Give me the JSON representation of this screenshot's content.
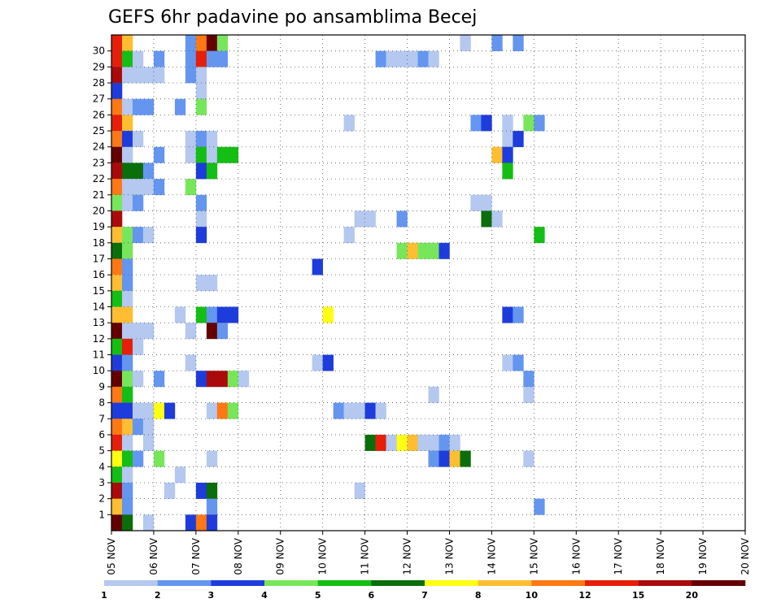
{
  "chart_data": {
    "type": "heatmap",
    "title": "GEFS 6hr padavine po ansamblima Becej",
    "xlabel": "",
    "ylabel": "",
    "x_tick_labels": [
      "05 NOV",
      "06 NOV",
      "07 NOV",
      "08 NOV",
      "09 NOV",
      "10 NOV",
      "11 NOV",
      "12 NOV",
      "13 NOV",
      "14 NOV",
      "15 NOV",
      "16 NOV",
      "17 NOV",
      "18 NOV",
      "19 NOV",
      "20 NOV"
    ],
    "y_tick_labels": [
      "1",
      "2",
      "3",
      "4",
      "5",
      "6",
      "7",
      "8",
      "9",
      "10",
      "11",
      "12",
      "13",
      "14",
      "15",
      "16",
      "17",
      "18",
      "19",
      "20",
      "21",
      "22",
      "23",
      "24",
      "25",
      "26",
      "27",
      "28",
      "29",
      "30"
    ],
    "x_range_days": [
      5,
      20
    ],
    "y_range_members": [
      0,
      30
    ],
    "time_step_hours": 6,
    "grid": true,
    "legend_position": "bottom",
    "legend_labels": [
      "1",
      "2",
      "3",
      "4",
      "5",
      "6",
      "7",
      "8",
      "10",
      "12",
      "15",
      "20"
    ],
    "color_bins": [
      "#b4c8f0",
      "#6496f0",
      "#1e3cdc",
      "#78e65a",
      "#14be14",
      "#0a6e0a",
      "#ffff14",
      "#ffbe32",
      "#ff7814",
      "#e61e0a",
      "#aa0a0a",
      "#640000"
    ],
    "cells_note": "each cell = [member, 6h-step index from 05 NOV 00z, color bin index 0-11]",
    "cells": [
      [
        30,
        0,
        9
      ],
      [
        30,
        1,
        7
      ],
      [
        30,
        7,
        1
      ],
      [
        30,
        8,
        8
      ],
      [
        30,
        9,
        11
      ],
      [
        30,
        10,
        3
      ],
      [
        30,
        33,
        0
      ],
      [
        30,
        36,
        1
      ],
      [
        30,
        38,
        1
      ],
      [
        29,
        0,
        9
      ],
      [
        29,
        1,
        4
      ],
      [
        29,
        2,
        0
      ],
      [
        29,
        4,
        1
      ],
      [
        29,
        7,
        1
      ],
      [
        29,
        8,
        9
      ],
      [
        29,
        9,
        1
      ],
      [
        29,
        10,
        1
      ],
      [
        29,
        25,
        1
      ],
      [
        29,
        26,
        0
      ],
      [
        29,
        27,
        0
      ],
      [
        29,
        28,
        0
      ],
      [
        29,
        29,
        1
      ],
      [
        29,
        30,
        0
      ],
      [
        28,
        0,
        10
      ],
      [
        28,
        1,
        0
      ],
      [
        28,
        2,
        0
      ],
      [
        28,
        3,
        0
      ],
      [
        28,
        4,
        0
      ],
      [
        28,
        7,
        1
      ],
      [
        28,
        8,
        0
      ],
      [
        27,
        0,
        2
      ],
      [
        27,
        8,
        0
      ],
      [
        26,
        0,
        8
      ],
      [
        26,
        1,
        0
      ],
      [
        26,
        2,
        1
      ],
      [
        26,
        3,
        1
      ],
      [
        26,
        6,
        1
      ],
      [
        26,
        8,
        3
      ],
      [
        25,
        0,
        9
      ],
      [
        25,
        1,
        7
      ],
      [
        25,
        22,
        0
      ],
      [
        25,
        34,
        1
      ],
      [
        25,
        35,
        2
      ],
      [
        25,
        37,
        0
      ],
      [
        25,
        39,
        3
      ],
      [
        25,
        40,
        1
      ],
      [
        24,
        0,
        8
      ],
      [
        24,
        1,
        2
      ],
      [
        24,
        2,
        0
      ],
      [
        24,
        7,
        0
      ],
      [
        24,
        8,
        1
      ],
      [
        24,
        9,
        0
      ],
      [
        24,
        37,
        0
      ],
      [
        24,
        38,
        2
      ],
      [
        23,
        0,
        11
      ],
      [
        23,
        1,
        0
      ],
      [
        23,
        4,
        1
      ],
      [
        23,
        7,
        0
      ],
      [
        23,
        8,
        4
      ],
      [
        23,
        9,
        0
      ],
      [
        23,
        10,
        4
      ],
      [
        23,
        11,
        4
      ],
      [
        23,
        36,
        7
      ],
      [
        23,
        37,
        2
      ],
      [
        22,
        0,
        10
      ],
      [
        22,
        1,
        5
      ],
      [
        22,
        2,
        5
      ],
      [
        22,
        3,
        1
      ],
      [
        22,
        8,
        2
      ],
      [
        22,
        9,
        4
      ],
      [
        22,
        37,
        4
      ],
      [
        21,
        0,
        8
      ],
      [
        21,
        1,
        0
      ],
      [
        21,
        2,
        0
      ],
      [
        21,
        3,
        0
      ],
      [
        21,
        4,
        1
      ],
      [
        21,
        7,
        3
      ],
      [
        20,
        0,
        3
      ],
      [
        20,
        1,
        0
      ],
      [
        20,
        2,
        1
      ],
      [
        20,
        8,
        1
      ],
      [
        20,
        34,
        0
      ],
      [
        20,
        35,
        0
      ],
      [
        19,
        0,
        10
      ],
      [
        19,
        8,
        0
      ],
      [
        19,
        23,
        0
      ],
      [
        19,
        24,
        0
      ],
      [
        19,
        27,
        1
      ],
      [
        19,
        35,
        5
      ],
      [
        19,
        36,
        0
      ],
      [
        18,
        0,
        7
      ],
      [
        18,
        1,
        3
      ],
      [
        18,
        2,
        1
      ],
      [
        18,
        3,
        0
      ],
      [
        18,
        8,
        2
      ],
      [
        18,
        22,
        0
      ],
      [
        18,
        40,
        4
      ],
      [
        17,
        0,
        5
      ],
      [
        17,
        1,
        3
      ],
      [
        17,
        27,
        3
      ],
      [
        17,
        28,
        7
      ],
      [
        17,
        29,
        3
      ],
      [
        17,
        30,
        3
      ],
      [
        17,
        31,
        2
      ],
      [
        16,
        0,
        8
      ],
      [
        16,
        1,
        1
      ],
      [
        16,
        19,
        2
      ],
      [
        15,
        0,
        7
      ],
      [
        15,
        1,
        1
      ],
      [
        15,
        8,
        0
      ],
      [
        15,
        9,
        0
      ],
      [
        14,
        0,
        4
      ],
      [
        14,
        1,
        0
      ],
      [
        13,
        0,
        7
      ],
      [
        13,
        1,
        7
      ],
      [
        13,
        6,
        0
      ],
      [
        13,
        8,
        4
      ],
      [
        13,
        9,
        1
      ],
      [
        13,
        10,
        2
      ],
      [
        13,
        11,
        2
      ],
      [
        13,
        20,
        6
      ],
      [
        13,
        37,
        2
      ],
      [
        13,
        38,
        1
      ],
      [
        12,
        0,
        11
      ],
      [
        12,
        1,
        0
      ],
      [
        12,
        2,
        0
      ],
      [
        12,
        3,
        0
      ],
      [
        12,
        7,
        0
      ],
      [
        12,
        9,
        11
      ],
      [
        12,
        10,
        1
      ],
      [
        11,
        0,
        4
      ],
      [
        11,
        1,
        9
      ],
      [
        11,
        2,
        0
      ],
      [
        10,
        0,
        2
      ],
      [
        10,
        1,
        1
      ],
      [
        10,
        7,
        0
      ],
      [
        10,
        19,
        0
      ],
      [
        10,
        20,
        2
      ],
      [
        10,
        37,
        0
      ],
      [
        10,
        38,
        1
      ],
      [
        9,
        0,
        11
      ],
      [
        9,
        1,
        3
      ],
      [
        9,
        2,
        0
      ],
      [
        9,
        4,
        1
      ],
      [
        9,
        8,
        2
      ],
      [
        9,
        9,
        10
      ],
      [
        9,
        10,
        10
      ],
      [
        9,
        11,
        3
      ],
      [
        9,
        12,
        0
      ],
      [
        9,
        39,
        1
      ],
      [
        8,
        0,
        8
      ],
      [
        8,
        1,
        4
      ],
      [
        8,
        30,
        0
      ],
      [
        8,
        39,
        0
      ],
      [
        7,
        0,
        2
      ],
      [
        7,
        1,
        2
      ],
      [
        7,
        2,
        0
      ],
      [
        7,
        3,
        0
      ],
      [
        7,
        4,
        6
      ],
      [
        7,
        5,
        2
      ],
      [
        7,
        9,
        0
      ],
      [
        7,
        10,
        8
      ],
      [
        7,
        11,
        3
      ],
      [
        7,
        21,
        1
      ],
      [
        7,
        22,
        0
      ],
      [
        7,
        23,
        0
      ],
      [
        7,
        24,
        2
      ],
      [
        7,
        25,
        0
      ],
      [
        6,
        0,
        8
      ],
      [
        6,
        1,
        7
      ],
      [
        6,
        2,
        1
      ],
      [
        6,
        3,
        0
      ],
      [
        5,
        0,
        9
      ],
      [
        5,
        1,
        0
      ],
      [
        5,
        3,
        0
      ],
      [
        5,
        24,
        5
      ],
      [
        5,
        25,
        9
      ],
      [
        5,
        26,
        0
      ],
      [
        5,
        27,
        6
      ],
      [
        5,
        28,
        7
      ],
      [
        5,
        29,
        0
      ],
      [
        5,
        30,
        0
      ],
      [
        5,
        31,
        1
      ],
      [
        5,
        32,
        0
      ],
      [
        4,
        0,
        6
      ],
      [
        4,
        1,
        4
      ],
      [
        4,
        2,
        1
      ],
      [
        4,
        4,
        3
      ],
      [
        4,
        9,
        0
      ],
      [
        4,
        30,
        1
      ],
      [
        4,
        31,
        2
      ],
      [
        4,
        32,
        7
      ],
      [
        4,
        33,
        5
      ],
      [
        4,
        39,
        0
      ],
      [
        3,
        0,
        4
      ],
      [
        3,
        1,
        0
      ],
      [
        3,
        6,
        0
      ],
      [
        2,
        0,
        10
      ],
      [
        2,
        1,
        1
      ],
      [
        2,
        5,
        0
      ],
      [
        2,
        8,
        2
      ],
      [
        2,
        9,
        5
      ],
      [
        2,
        23,
        0
      ],
      [
        1,
        0,
        7
      ],
      [
        1,
        1,
        1
      ],
      [
        1,
        9,
        1
      ],
      [
        1,
        40,
        1
      ],
      [
        0,
        0,
        11
      ],
      [
        0,
        1,
        5
      ],
      [
        0,
        3,
        0
      ],
      [
        0,
        7,
        2
      ],
      [
        0,
        8,
        8
      ],
      [
        0,
        9,
        2
      ]
    ]
  }
}
